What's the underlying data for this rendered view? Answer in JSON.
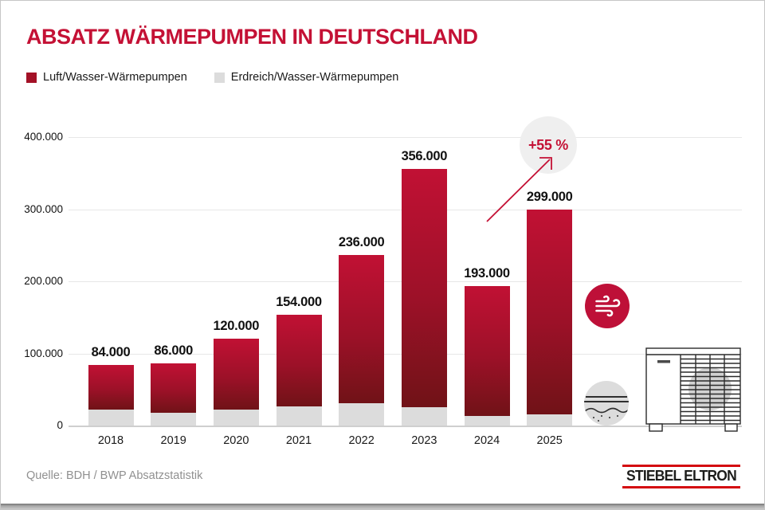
{
  "title": "ABSATZ WÄRMEPUMPEN IN DEUTSCHLAND",
  "colors": {
    "accent_red": "#c41135",
    "bar_red_top": "#c11134",
    "bar_red_bottom": "#701217",
    "bar_gray": "#dcdcdc",
    "legend_red": "#a31126",
    "logo_red": "#d40a10"
  },
  "legend": {
    "items": [
      {
        "label": "Luft/Wasser-Wärmepumpen",
        "color": "#a31126"
      },
      {
        "label": "Erdreich/Wasser-Wärmepumpen",
        "color": "#dcdcdc"
      }
    ]
  },
  "chart_data": {
    "type": "bar",
    "stacked": true,
    "title": "Absatz Wärmepumpen in Deutschland",
    "categories": [
      "2018",
      "2019",
      "2020",
      "2021",
      "2022",
      "2023",
      "2024",
      "2025"
    ],
    "series": [
      {
        "name": "Luft/Wasser-Wärmepumpen",
        "values": [
          62000,
          68000,
          98000,
          127000,
          205000,
          331000,
          180000,
          284000
        ]
      },
      {
        "name": "Erdreich/Wasser-Wärmepumpen",
        "values": [
          22000,
          18000,
          22000,
          27000,
          31000,
          25000,
          13000,
          15000
        ]
      }
    ],
    "totals": [
      84000,
      86000,
      120000,
      154000,
      236000,
      356000,
      193000,
      299000
    ],
    "total_labels": [
      "84.000",
      "86.000",
      "120.000",
      "154.000",
      "236.000",
      "356.000",
      "193.000",
      "299.000"
    ],
    "y_ticks": [
      {
        "value": 400000,
        "label": "400.000"
      },
      {
        "value": 300000,
        "label": "300.000"
      },
      {
        "value": 200000,
        "label": "200.000"
      },
      {
        "value": 100000,
        "label": "100.000"
      },
      {
        "value": 0,
        "label": "0"
      }
    ],
    "ylim": [
      0,
      440000
    ],
    "grid": true,
    "legend_position": "top-left"
  },
  "annotation": {
    "text": "+55 %"
  },
  "icons": {
    "wind": "wind-icon",
    "ground": "ground-icon",
    "heat_pump": "heat-pump-illustration"
  },
  "source": "Quelle: BDH / BWP Absatzstatistik",
  "logo": {
    "text": "STIEBEL ELTRON"
  }
}
